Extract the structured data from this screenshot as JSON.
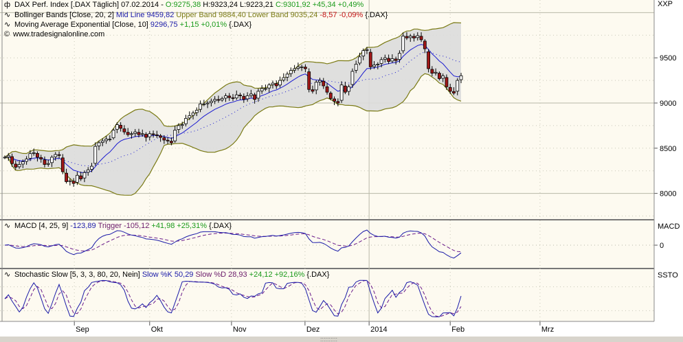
{
  "header": {
    "symbol_line": {
      "name": "DAX Perf. Index [.DAX  Täglich] 07.02.2014 -",
      "open": "O:9275,38",
      "high": "H:9323,24",
      "low": "L:9223,21",
      "close": "C:9301,92",
      "change": "+45,34",
      "change_pct": "+0,49%"
    },
    "bollinger_line": {
      "name": "Bollinger Bands [Close, 20, 2]",
      "mid": "Mid Line 9459,82",
      "upper": "Upper Band 9884,40",
      "lower": "Lower Band 9035,24",
      "change": "-8,57",
      "change_pct": "-0,09%",
      "symbol": "{.DAX}"
    },
    "ema_line": {
      "name": "Moving Average Exponential [Close, 10]",
      "value": "9296,75",
      "change": "+1,15",
      "change_pct": "+0,01%",
      "symbol": "{.DAX}"
    },
    "watermark": "www.tradesignalonline.com"
  },
  "macd_legend": {
    "name": "MACD [4, 25, 9]",
    "value": "-123,89",
    "trigger": "Trigger -105,12",
    "change": "+41,98",
    "change_pct": "+25,31%",
    "symbol": "{.DAX}"
  },
  "stoch_legend": {
    "name": "Stochastic Slow [5, 3, 3, 80, 20, Nein]",
    "k": "Slow %K 50,29",
    "d": "Slow %D 28,93",
    "change": "+24,12",
    "change_pct": "+92,16%",
    "symbol": "{.DAX}"
  },
  "axis": {
    "price_label": "XXP",
    "price_ticks": [
      "9500",
      "9000",
      "8500",
      "8000"
    ],
    "macd_label": "MACD",
    "macd_ticks": [
      "0"
    ],
    "stoch_label": "SSTO"
  },
  "colors": {
    "bg": "#fdfaf0",
    "up": "#ffffff",
    "down": "#a01818",
    "band": "#7a7a14",
    "bandfill": "#dcdcdc",
    "mid": "#1a1ad0",
    "ema": "#1a1ad0",
    "macd": "#1a1aa8",
    "trigger": "#6a1a8a"
  },
  "chart_data": {
    "type": "candlestick",
    "ylim": [
      7800,
      10050
    ],
    "month_ticks": [
      {
        "label": "Sep",
        "bar": 19.2
      },
      {
        "label": "Okt",
        "bar": 40
      },
      {
        "label": "Nov",
        "bar": 62.6
      },
      {
        "label": "Dez",
        "bar": 82.9
      },
      {
        "label": "2014",
        "bar": 100.6
      },
      {
        "label": "Feb",
        "bar": 123
      },
      {
        "label": "Mrz",
        "bar": 147.8
      }
    ],
    "close": [
      8400,
      8420,
      8330,
      8290,
      8320,
      8350,
      8380,
      8440,
      8450,
      8400,
      8380,
      8320,
      8330,
      8400,
      8430,
      8420,
      8240,
      8130,
      8140,
      8110,
      8200,
      8160,
      8230,
      8260,
      8300,
      8520,
      8560,
      8580,
      8600,
      8600,
      8700,
      8760,
      8720,
      8680,
      8650,
      8660,
      8680,
      8650,
      8660,
      8620,
      8660,
      8650,
      8640,
      8620,
      8590,
      8580,
      8560,
      8700,
      8750,
      8760,
      8830,
      8860,
      8890,
      8920,
      8990,
      8990,
      9000,
      9020,
      9040,
      9030,
      9050,
      9080,
      9060,
      9050,
      9090,
      9080,
      9040,
      9080,
      9100,
      9040,
      9130,
      9160,
      9160,
      9200,
      9220,
      9190,
      9250,
      9280,
      9320,
      9360,
      9380,
      9400,
      9400,
      9380,
      9150,
      9130,
      9230,
      9250,
      9190,
      9120,
      9050,
      9020,
      9000,
      9200,
      9120,
      9180,
      9350,
      9430,
      9510,
      9580,
      9590,
      9400,
      9420,
      9430,
      9480,
      9500,
      9460,
      9490,
      9470,
      9550,
      9740,
      9720,
      9740,
      9720,
      9745,
      9700,
      9600,
      9380,
      9330,
      9340,
      9270,
      9300,
      9180,
      9130,
      9110,
      9250,
      9302
    ]
  }
}
